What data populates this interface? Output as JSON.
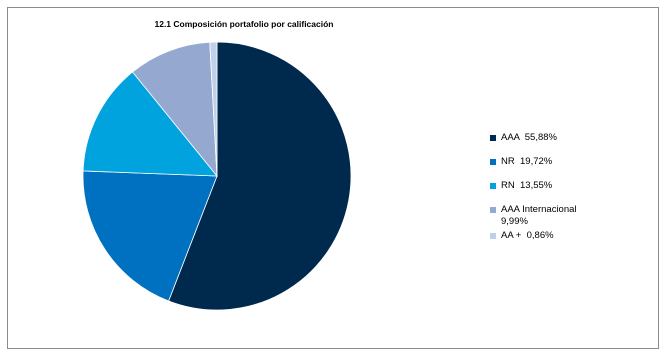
{
  "chart_data": {
    "type": "pie",
    "title": "12.1 Composición portafolio por calificación",
    "start_angle_deg": 0,
    "direction": "clockwise",
    "legend_position": "right",
    "slices": [
      {
        "name": "AAA",
        "value": 55.88,
        "label": "AAA  55,88%",
        "color": "#002A4D"
      },
      {
        "name": "NR",
        "value": 19.72,
        "label": "NR  19,72%",
        "color": "#0070C0"
      },
      {
        "name": "RN",
        "value": 13.55,
        "label": "RN  13,55%",
        "color": "#00A3DD"
      },
      {
        "name": "AAA Internacional",
        "value": 9.99,
        "label": "AAA Internacional\n9,99%",
        "color": "#95A8D0"
      },
      {
        "name": "AA +",
        "value": 0.86,
        "label": "AA +  0,86%",
        "color": "#BFD1EA"
      }
    ],
    "legend_order": [
      0,
      1,
      2,
      3,
      4
    ]
  }
}
